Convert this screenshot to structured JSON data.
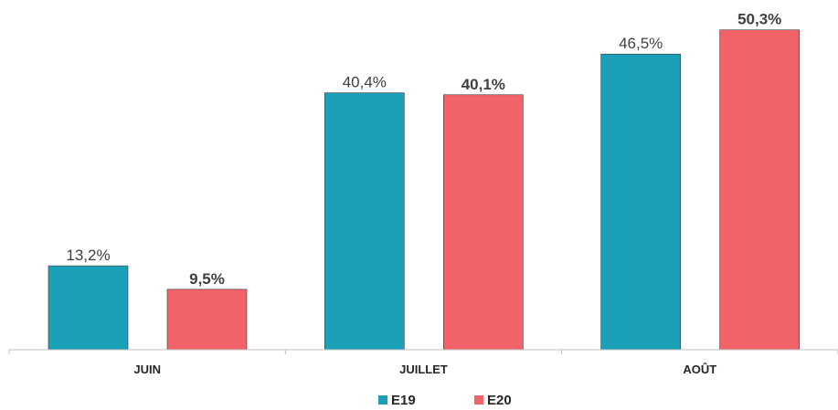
{
  "chart_data": {
    "type": "bar",
    "categories": [
      "JUIN",
      "JUILLET",
      "AOÛT"
    ],
    "series": [
      {
        "name": "E19",
        "values": [
          13.2,
          40.4,
          46.5
        ],
        "labels": [
          "13,2%",
          "40,4%",
          "46,5%"
        ],
        "color": "#1aa1b8"
      },
      {
        "name": "E20",
        "values": [
          9.5,
          40.1,
          50.3
        ],
        "labels": [
          "9,5%",
          "40,1%",
          "50,3%"
        ],
        "color": "#f26369"
      }
    ],
    "ylim": [
      0,
      55
    ],
    "legend_position": "bottom",
    "grid": false
  }
}
